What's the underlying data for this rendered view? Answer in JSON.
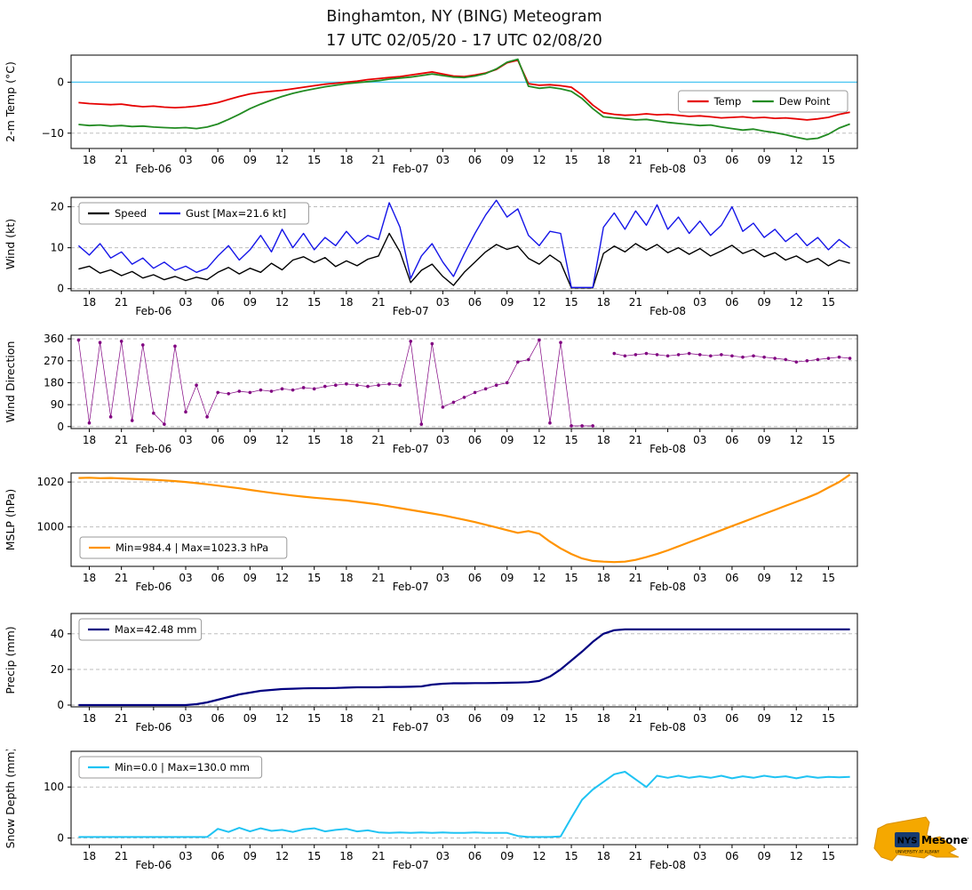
{
  "title": {
    "line1": "Binghamton, NY (BING) Meteogram",
    "line2": "17 UTC 02/05/20 - 17 UTC 02/08/20"
  },
  "logo": {
    "nys": "NYS",
    "mesonet": "Mesonet",
    "subtitle": "UNIVERSITY AT ALBANY"
  },
  "axis": {
    "x": {
      "min": -0.7,
      "max": 72.7,
      "ticks": [
        {
          "p": 1,
          "l": "18"
        },
        {
          "p": 4,
          "l": "21"
        },
        {
          "p": 7,
          "l": "Feb-06",
          "d": 1
        },
        {
          "p": 10,
          "l": "03"
        },
        {
          "p": 13,
          "l": "06"
        },
        {
          "p": 16,
          "l": "09"
        },
        {
          "p": 19,
          "l": "12"
        },
        {
          "p": 22,
          "l": "15"
        },
        {
          "p": 25,
          "l": "18"
        },
        {
          "p": 28,
          "l": "21"
        },
        {
          "p": 31,
          "l": "Feb-07",
          "d": 1
        },
        {
          "p": 34,
          "l": "03"
        },
        {
          "p": 37,
          "l": "06"
        },
        {
          "p": 40,
          "l": "09"
        },
        {
          "p": 43,
          "l": "12"
        },
        {
          "p": 46,
          "l": "15"
        },
        {
          "p": 49,
          "l": "18"
        },
        {
          "p": 52,
          "l": "21"
        },
        {
          "p": 55,
          "l": "Feb-08",
          "d": 1
        },
        {
          "p": 58,
          "l": "03"
        },
        {
          "p": 61,
          "l": "06"
        },
        {
          "p": 64,
          "l": "09"
        },
        {
          "p": 67,
          "l": "12"
        },
        {
          "p": 70,
          "l": "15"
        }
      ]
    }
  },
  "chart_data": [
    {
      "id": "temp",
      "type": "line",
      "ylabel": "2-m Temp (°C)",
      "ylim": [
        -13,
        5.3
      ],
      "yticks": [
        0,
        -10
      ],
      "ref_line": {
        "y": 0,
        "color": "#4fc7f2"
      },
      "legend": {
        "loc": "right"
      },
      "series": [
        {
          "name": "Temp",
          "color": "#e60000",
          "width": 1.8,
          "x0": 0,
          "dx": 1,
          "y": [
            -4.0,
            -4.2,
            -4.3,
            -4.4,
            -4.3,
            -4.6,
            -4.8,
            -4.7,
            -4.9,
            -5.0,
            -4.9,
            -4.7,
            -4.4,
            -4.0,
            -3.4,
            -2.8,
            -2.3,
            -2.0,
            -1.8,
            -1.6,
            -1.3,
            -1.0,
            -0.7,
            -0.4,
            -0.2,
            0.0,
            0.2,
            0.5,
            0.7,
            0.9,
            1.1,
            1.4,
            1.7,
            2.0,
            1.6,
            1.2,
            1.1,
            1.4,
            1.8,
            2.5,
            3.8,
            4.3,
            -0.3,
            -0.6,
            -0.5,
            -0.7,
            -1.0,
            -2.5,
            -4.5,
            -6.0,
            -6.3,
            -6.5,
            -6.4,
            -6.2,
            -6.4,
            -6.3,
            -6.5,
            -6.7,
            -6.6,
            -6.8,
            -7.0,
            -6.9,
            -6.8,
            -7.0,
            -6.9,
            -7.1,
            -7.0,
            -7.2,
            -7.4,
            -7.2,
            -6.9,
            -6.3,
            -5.9
          ]
        },
        {
          "name": "Dew Point",
          "color": "#228b22",
          "width": 1.8,
          "x0": 0,
          "dx": 1,
          "y": [
            -8.3,
            -8.5,
            -8.4,
            -8.6,
            -8.5,
            -8.7,
            -8.6,
            -8.8,
            -8.9,
            -9.0,
            -8.9,
            -9.1,
            -8.8,
            -8.2,
            -7.3,
            -6.3,
            -5.2,
            -4.3,
            -3.5,
            -2.8,
            -2.2,
            -1.7,
            -1.3,
            -0.9,
            -0.6,
            -0.3,
            -0.1,
            0.1,
            0.3,
            0.6,
            0.8,
            1.0,
            1.3,
            1.6,
            1.3,
            1.0,
            0.9,
            1.2,
            1.7,
            2.6,
            3.9,
            4.5,
            -0.8,
            -1.2,
            -1.0,
            -1.3,
            -1.8,
            -3.2,
            -5.2,
            -6.8,
            -7.0,
            -7.2,
            -7.4,
            -7.3,
            -7.6,
            -7.9,
            -8.1,
            -8.3,
            -8.5,
            -8.4,
            -8.8,
            -9.1,
            -9.4,
            -9.2,
            -9.6,
            -9.9,
            -10.3,
            -10.8,
            -11.2,
            -11.0,
            -10.2,
            -9.0,
            -8.2
          ]
        }
      ]
    },
    {
      "id": "wind",
      "type": "line",
      "ylabel": "Wind (kt)",
      "ylim": [
        -0.5,
        22.3
      ],
      "yticks": [
        0,
        10,
        20
      ],
      "legend": {
        "loc": "upper-left"
      },
      "series": [
        {
          "name": "Speed",
          "color": "#000000",
          "width": 1.4,
          "x0": 0,
          "dx": 1,
          "y": [
            4.8,
            5.5,
            3.8,
            4.6,
            3.2,
            4.2,
            2.6,
            3.4,
            2.2,
            3.0,
            2.0,
            2.8,
            2.2,
            4.0,
            5.2,
            3.6,
            5.0,
            4.0,
            6.2,
            4.6,
            7.0,
            7.8,
            6.4,
            7.6,
            5.4,
            6.8,
            5.6,
            7.2,
            8.0,
            13.5,
            9.0,
            1.5,
            4.5,
            6.0,
            3.0,
            0.8,
            4.0,
            6.5,
            9.0,
            10.8,
            9.6,
            10.4,
            7.4,
            6.0,
            8.2,
            6.4,
            0.2,
            0.2,
            0.2,
            8.6,
            10.4,
            9.0,
            11.0,
            9.4,
            10.8,
            8.8,
            10.0,
            8.4,
            9.8,
            8.0,
            9.2,
            10.6,
            8.6,
            9.6,
            7.8,
            8.8,
            7.0,
            8.0,
            6.4,
            7.4,
            5.6,
            7.0,
            6.2
          ]
        },
        {
          "name": "Gust [Max=21.6 kt]",
          "color": "#1515e8",
          "width": 1.4,
          "x0": 0,
          "dx": 1,
          "y": [
            10.5,
            8.2,
            11.0,
            7.5,
            9.0,
            6.0,
            7.5,
            5.0,
            6.5,
            4.5,
            5.5,
            4.0,
            5.0,
            8.0,
            10.5,
            7.0,
            9.5,
            13.0,
            9.0,
            14.5,
            10.0,
            13.5,
            9.5,
            12.5,
            10.5,
            14.0,
            11.0,
            13.0,
            12.0,
            21.0,
            15.0,
            2.5,
            8.0,
            11.0,
            6.5,
            3.0,
            8.5,
            13.5,
            18.0,
            21.6,
            17.5,
            19.5,
            13.0,
            10.5,
            14.0,
            13.5,
            0.3,
            0.3,
            0.3,
            15.0,
            18.5,
            14.5,
            19.0,
            15.5,
            20.5,
            14.5,
            17.5,
            13.5,
            16.5,
            13.0,
            15.5,
            20.0,
            14.0,
            16.0,
            12.5,
            14.5,
            11.5,
            13.5,
            10.5,
            12.5,
            9.5,
            12.0,
            10.0
          ]
        }
      ]
    },
    {
      "id": "wind-direction",
      "type": "scatter-line",
      "ylabel": "Wind Direction",
      "ylim": [
        -8,
        375
      ],
      "yticks": [
        0,
        90,
        180,
        270,
        360
      ],
      "series": [
        {
          "name": "Wind Direction",
          "color": "#800080",
          "width": 0.7,
          "x0": 0,
          "dx": 1,
          "y": [
            355,
            15,
            345,
            40,
            350,
            25,
            335,
            55,
            10,
            330,
            60,
            170,
            40,
            140,
            135,
            145,
            140,
            150,
            145,
            155,
            150,
            160,
            155,
            165,
            170,
            175,
            170,
            165,
            170,
            175,
            170,
            350,
            10,
            340,
            80,
            100,
            120,
            140,
            155,
            170,
            180,
            265,
            275,
            355,
            15,
            345,
            3,
            3,
            3,
            null,
            300,
            290,
            295,
            300,
            295,
            290,
            295,
            300,
            295,
            290,
            295,
            290,
            285,
            290,
            285,
            280,
            275,
            265,
            270,
            275,
            280,
            285,
            280
          ]
        }
      ]
    },
    {
      "id": "mslp",
      "type": "line",
      "ylabel": "MSLP (hPa)",
      "ylim": [
        982.5,
        1024
      ],
      "yticks": [
        1000,
        1020
      ],
      "legend": {
        "loc": "lower-left"
      },
      "series": [
        {
          "name": "Min=984.4 | Max=1023.3 hPa",
          "color": "#ff9300",
          "width": 2.2,
          "x0": 0,
          "dx": 1,
          "y": [
            1021.8,
            1021.9,
            1021.7,
            1021.8,
            1021.6,
            1021.4,
            1021.2,
            1021.0,
            1020.7,
            1020.4,
            1020.0,
            1019.5,
            1019.0,
            1018.4,
            1017.8,
            1017.2,
            1016.5,
            1015.8,
            1015.2,
            1014.6,
            1014.0,
            1013.5,
            1013.0,
            1012.6,
            1012.2,
            1011.8,
            1011.2,
            1010.6,
            1010.0,
            1009.2,
            1008.4,
            1007.6,
            1006.8,
            1006.0,
            1005.2,
            1004.2,
            1003.2,
            1002.2,
            1001.0,
            999.8,
            998.6,
            997.4,
            998.2,
            997.0,
            993.5,
            990.5,
            988.0,
            986.0,
            984.9,
            984.6,
            984.4,
            984.6,
            985.4,
            986.6,
            988.0,
            989.6,
            991.4,
            993.2,
            995.0,
            996.8,
            998.6,
            1000.4,
            1002.2,
            1004.0,
            1005.8,
            1007.6,
            1009.4,
            1011.2,
            1013.0,
            1015.0,
            1017.5,
            1020.0,
            1023.3
          ]
        }
      ]
    },
    {
      "id": "precip",
      "type": "line",
      "ylabel": "Precip (mm)",
      "ylim": [
        -1,
        51.4
      ],
      "yticks": [
        0,
        20,
        40
      ],
      "legend": {
        "loc": "upper-left"
      },
      "series": [
        {
          "name": "Max=42.48 mm",
          "color": "#000080",
          "width": 2.2,
          "x0": 0,
          "dx": 1,
          "y": [
            0,
            0,
            0,
            0,
            0,
            0,
            0,
            0,
            0,
            0,
            0,
            0.5,
            1.5,
            3.0,
            4.5,
            6.0,
            7.0,
            8.0,
            8.5,
            9.0,
            9.2,
            9.4,
            9.5,
            9.5,
            9.6,
            9.8,
            10.0,
            10.0,
            10.0,
            10.2,
            10.2,
            10.3,
            10.5,
            11.5,
            12.0,
            12.2,
            12.2,
            12.3,
            12.3,
            12.4,
            12.5,
            12.6,
            12.8,
            13.5,
            16.0,
            20.0,
            25.0,
            30.0,
            35.5,
            40.0,
            42.0,
            42.48,
            42.48,
            42.48,
            42.48,
            42.48,
            42.48,
            42.48,
            42.48,
            42.48,
            42.48,
            42.48,
            42.48,
            42.48,
            42.48,
            42.48,
            42.48,
            42.48,
            42.48,
            42.48,
            42.48,
            42.48,
            42.48
          ]
        }
      ]
    },
    {
      "id": "snow-depth",
      "type": "line",
      "ylabel": "Snow Depth (mm)",
      "ylim": [
        -13,
        170
      ],
      "yticks": [
        0,
        100
      ],
      "legend": {
        "loc": "upper-left"
      },
      "series": [
        {
          "name": "Min=0.0 | Max=130.0 mm",
          "color": "#1fc3f3",
          "width": 2.0,
          "x0": 0,
          "dx": 1,
          "y": [
            2,
            2,
            2,
            2,
            2,
            2,
            2,
            2,
            2,
            2,
            2,
            2,
            2,
            18,
            12,
            20,
            13,
            19,
            14,
            16,
            12,
            17,
            19,
            13,
            16,
            18,
            13,
            15,
            11,
            10,
            11,
            10,
            11,
            10,
            11,
            10,
            10,
            11,
            10,
            10,
            10,
            4,
            2,
            2,
            2,
            3,
            40,
            75,
            95,
            110,
            125,
            130,
            115,
            100,
            122,
            118,
            122,
            118,
            121,
            118,
            122,
            117,
            121,
            118,
            122,
            119,
            121,
            117,
            121,
            118,
            120,
            119,
            120
          ]
        }
      ]
    }
  ]
}
